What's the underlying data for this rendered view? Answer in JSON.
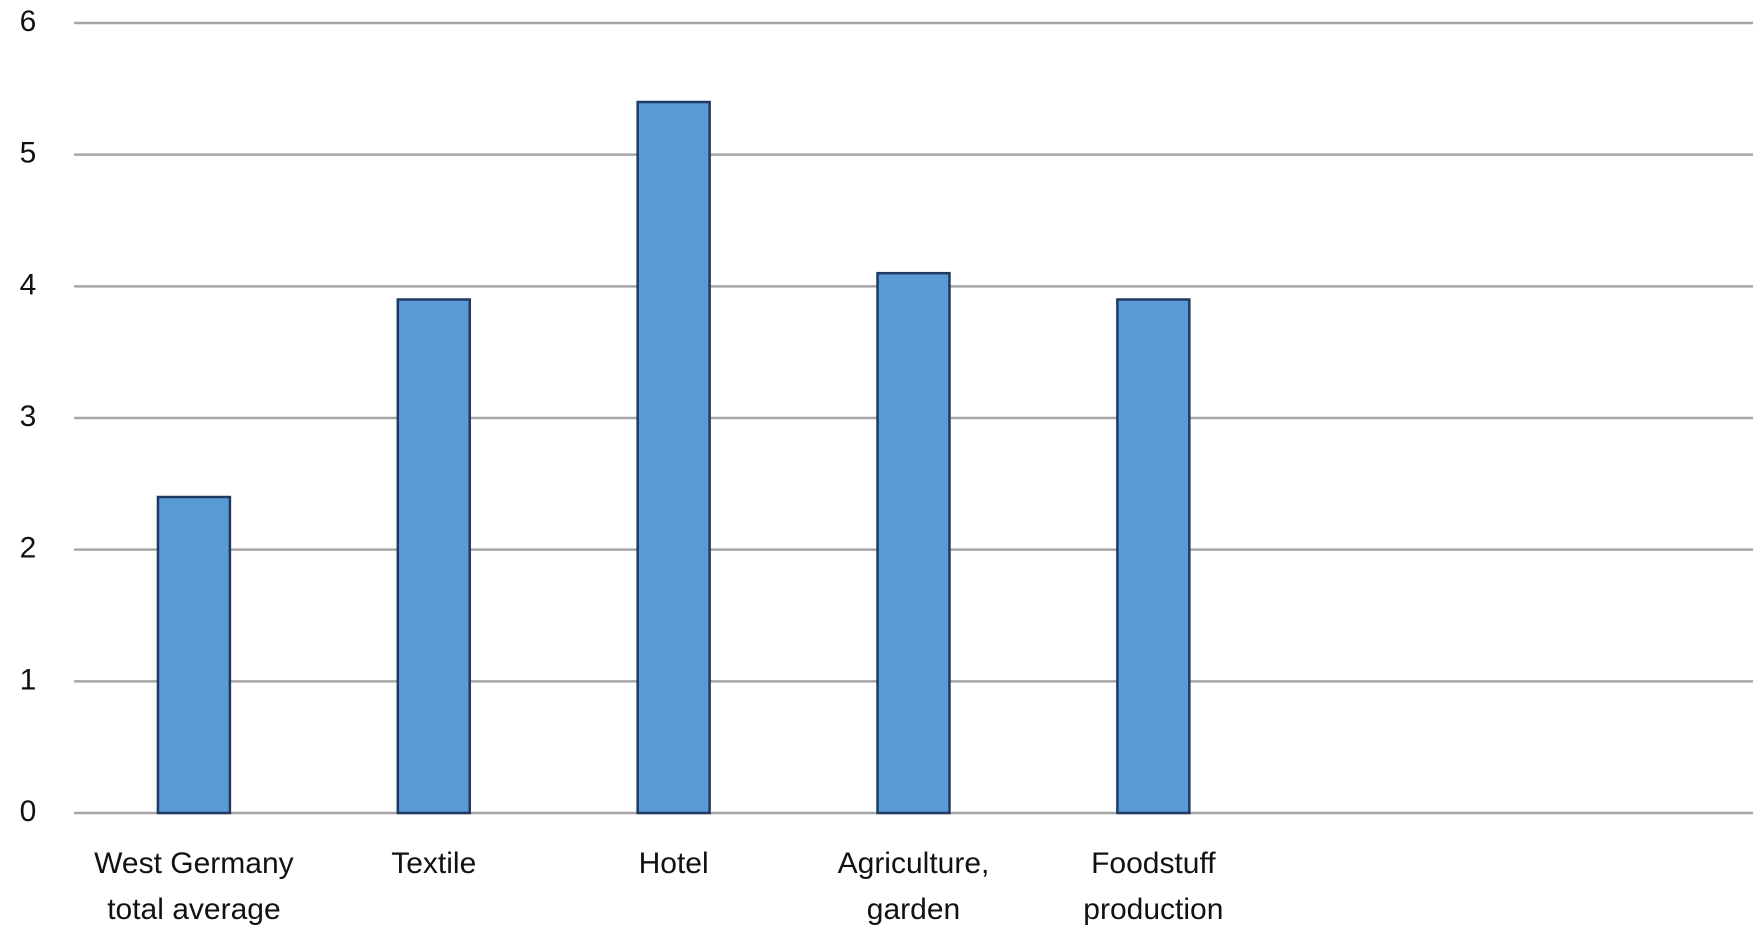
{
  "chart_data": {
    "type": "bar",
    "categories": [
      "West Germany total average",
      "Textile",
      "Hotel",
      "Agriculture, garden",
      "Foodstuff production"
    ],
    "values": [
      2.4,
      3.9,
      5.4,
      4.1,
      3.9
    ],
    "color": "#5b9bd5",
    "ylim": [
      0,
      6
    ],
    "yticks": [
      0,
      1,
      2,
      3,
      4,
      5,
      6
    ],
    "grid": true
  }
}
